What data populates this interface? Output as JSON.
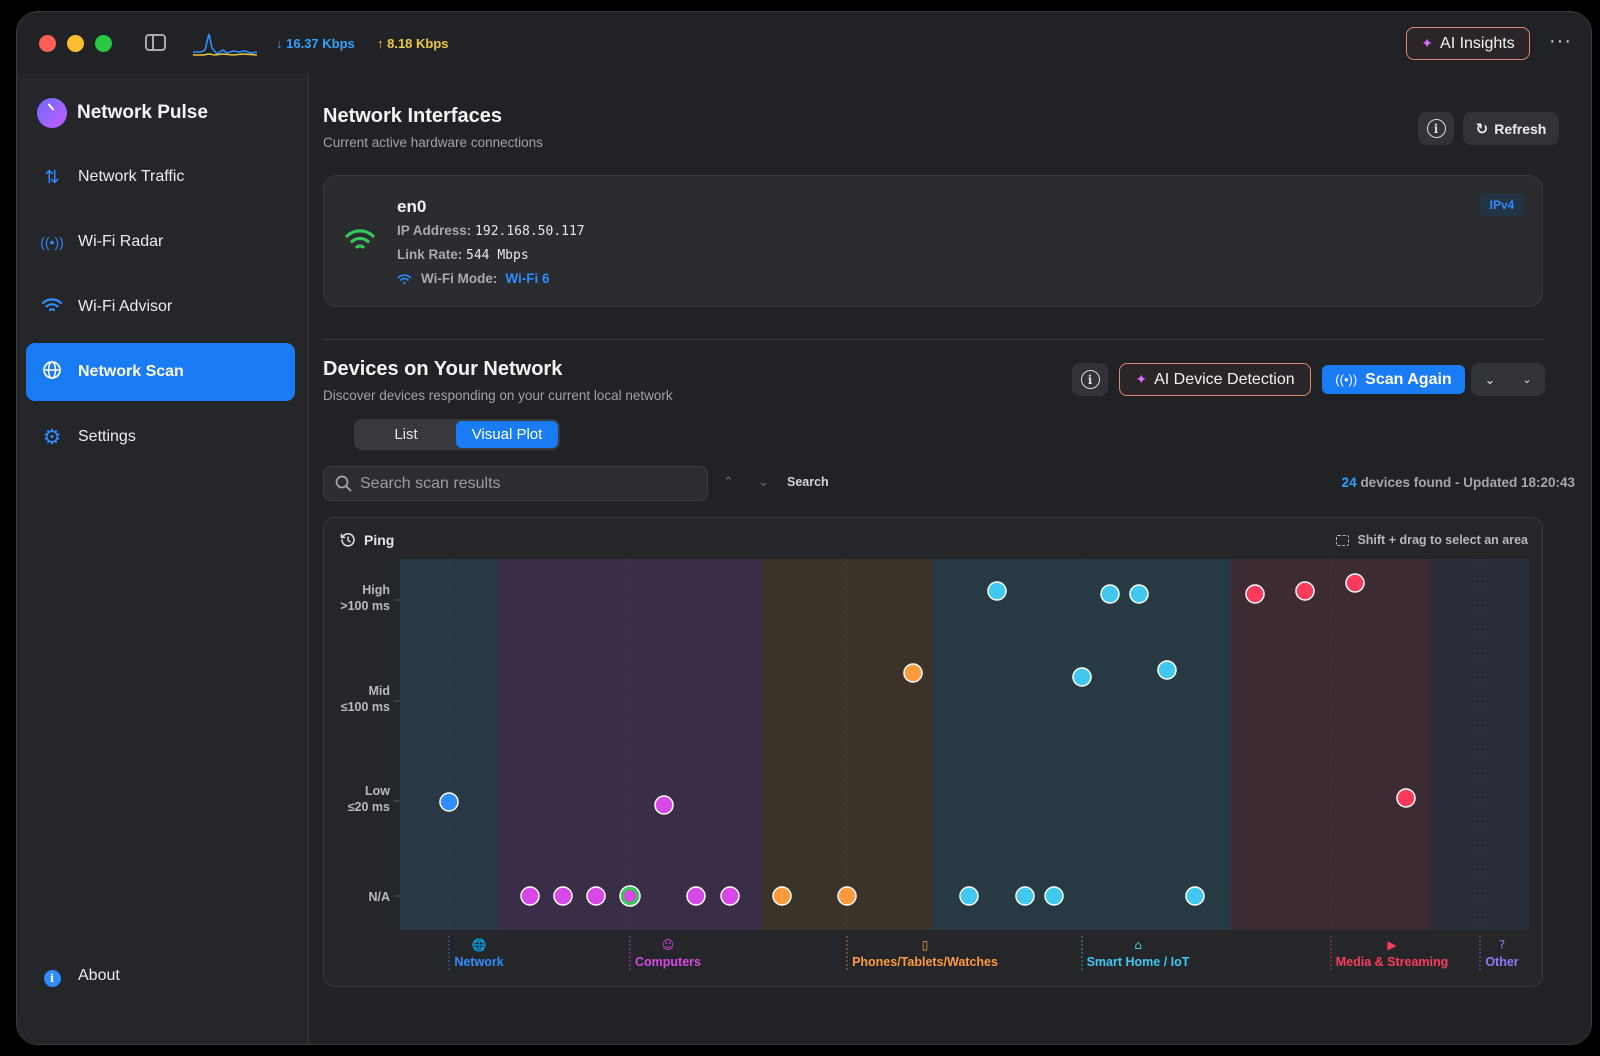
{
  "titlebar": {
    "download_rate": "↓ 16.37 Kbps",
    "upload_rate": "↑ 8.18 Kbps",
    "ai_insights_label": "AI Insights"
  },
  "sidebar": {
    "app_name": "Network Pulse",
    "items": [
      {
        "label": "Network Traffic",
        "icon": "arrows-up-down-icon"
      },
      {
        "label": "Wi-Fi Radar",
        "icon": "radar-icon"
      },
      {
        "label": "Wi-Fi Advisor",
        "icon": "wifi-icon"
      },
      {
        "label": "Network Scan",
        "icon": "globe-icon",
        "active": true
      },
      {
        "label": "Settings",
        "icon": "gear-icon"
      }
    ],
    "about_label": "About"
  },
  "interfaces": {
    "title": "Network Interfaces",
    "subtitle": "Current active hardware connections",
    "refresh_label": "Refresh",
    "card": {
      "name": "en0",
      "ip_label": "IP Address:",
      "ip_value": "192.168.50.117",
      "link_label": "Link Rate:",
      "link_value": "544 Mbps",
      "mode_label": "Wi-Fi Mode:",
      "mode_value": "Wi-Fi 6",
      "badge": "IPv4"
    }
  },
  "devices": {
    "title": "Devices on Your Network",
    "subtitle": "Discover devices responding on your current local network",
    "ai_detection_label": "AI Device Detection",
    "scan_again_label": "Scan Again",
    "view_tabs": [
      "List",
      "Visual Plot"
    ],
    "active_tab": "Visual Plot",
    "search_placeholder": "Search scan results",
    "search_button": "Search",
    "found_count": "24",
    "found_text": "devices found - Updated 18:20:43"
  },
  "plot": {
    "metric_label": "Ping",
    "hint": "Shift + drag to select an area"
  },
  "chart_data": {
    "type": "scatter",
    "title": "Ping",
    "y_levels": [
      {
        "label": "High",
        "sub": ">100 ms"
      },
      {
        "label": "Mid",
        "sub": "≤100 ms"
      },
      {
        "label": "Low",
        "sub": "≤20 ms"
      },
      {
        "label": "N/A",
        "sub": ""
      }
    ],
    "categories": [
      {
        "name": "Network",
        "color": "#2f8dff",
        "icon": "globe-icon"
      },
      {
        "name": "Computers",
        "color": "#d748e6",
        "icon": "person-icon"
      },
      {
        "name": "Phones/Tablets/Watches",
        "color": "#ff9a3c",
        "icon": "phone-icon"
      },
      {
        "name": "Smart Home / IoT",
        "color": "#40c8f0",
        "icon": "home-icon"
      },
      {
        "name": "Media & Streaming",
        "color": "#ff3b5c",
        "icon": "play-icon"
      },
      {
        "name": "Other",
        "color": "#8b7cf6",
        "icon": "question-icon"
      }
    ],
    "points": [
      {
        "category": "Network",
        "ping": "Low"
      },
      {
        "category": "Computers",
        "ping": "Low"
      },
      {
        "category": "Computers",
        "ping": "N/A"
      },
      {
        "category": "Computers",
        "ping": "N/A"
      },
      {
        "category": "Computers",
        "ping": "N/A"
      },
      {
        "category": "Computers",
        "ping": "N/A",
        "highlight": true
      },
      {
        "category": "Computers",
        "ping": "N/A"
      },
      {
        "category": "Computers",
        "ping": "N/A"
      },
      {
        "category": "Phones/Tablets/Watches",
        "ping": "N/A"
      },
      {
        "category": "Phones/Tablets/Watches",
        "ping": "N/A"
      },
      {
        "category": "Phones/Tablets/Watches",
        "ping": "Mid"
      },
      {
        "category": "Smart Home / IoT",
        "ping": "High"
      },
      {
        "category": "Smart Home / IoT",
        "ping": "High"
      },
      {
        "category": "Smart Home / IoT",
        "ping": "High"
      },
      {
        "category": "Smart Home / IoT",
        "ping": "Mid"
      },
      {
        "category": "Smart Home / IoT",
        "ping": "Mid"
      },
      {
        "category": "Smart Home / IoT",
        "ping": "N/A"
      },
      {
        "category": "Smart Home / IoT",
        "ping": "N/A"
      },
      {
        "category": "Smart Home / IoT",
        "ping": "N/A"
      },
      {
        "category": "Smart Home / IoT",
        "ping": "N/A"
      },
      {
        "category": "Media & Streaming",
        "ping": "High"
      },
      {
        "category": "Media & Streaming",
        "ping": "High"
      },
      {
        "category": "Media & Streaming",
        "ping": "High"
      },
      {
        "category": "Media & Streaming",
        "ping": "Low"
      }
    ]
  }
}
